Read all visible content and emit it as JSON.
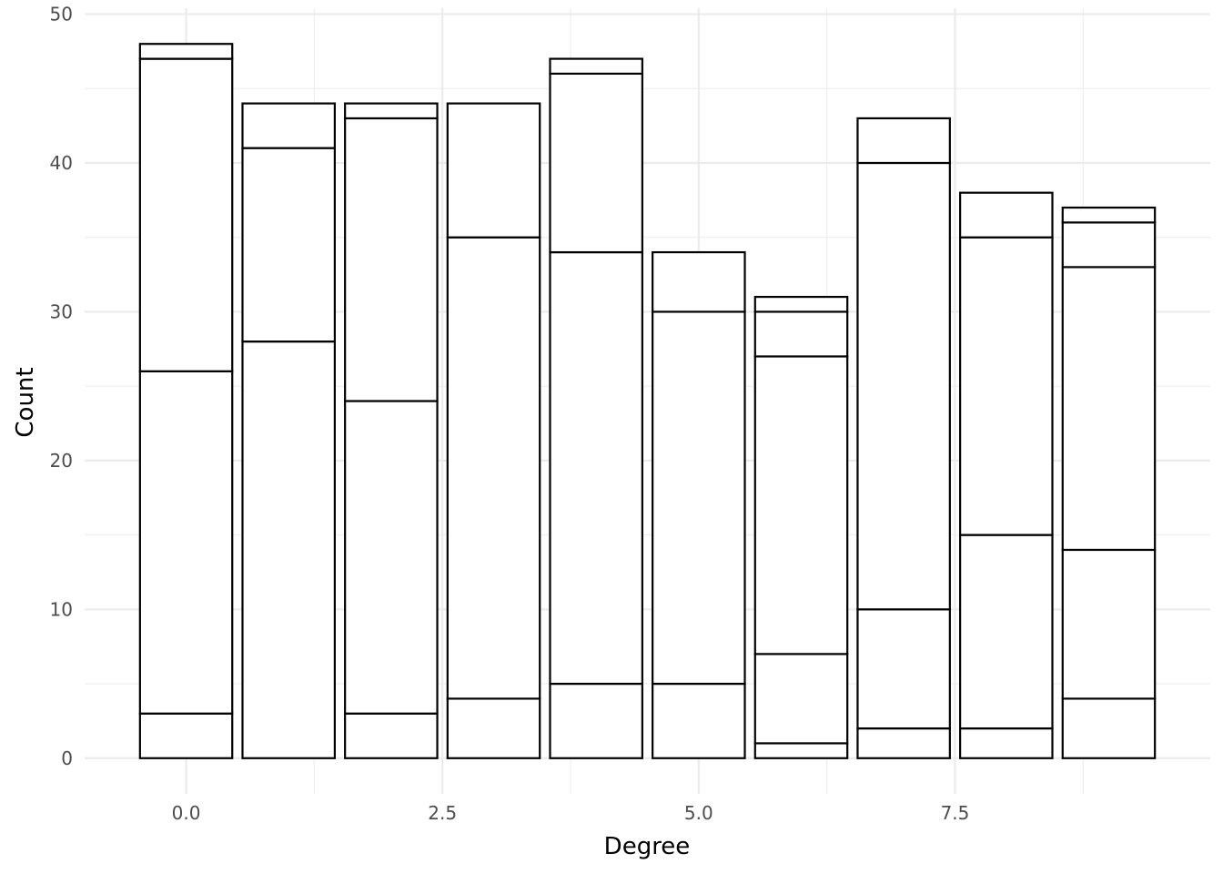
{
  "chart_data": {
    "type": "bar",
    "stacked": true,
    "title": "",
    "xlabel": "Degree",
    "ylabel": "Count",
    "xlim": [
      -0.99,
      9.99
    ],
    "ylim": [
      -2.4,
      50.4
    ],
    "x_ticks": [
      "0.0",
      "2.5",
      "5.0",
      "7.5"
    ],
    "x_tick_values": [
      0,
      2.5,
      5,
      7.5
    ],
    "y_ticks": [
      "0",
      "10",
      "20",
      "30",
      "40",
      "50"
    ],
    "y_tick_values": [
      0,
      10,
      20,
      30,
      40,
      50
    ],
    "grid": true,
    "legend": "none",
    "bar_fill": "#ffffff",
    "bar_outline": "#000000",
    "grid_color": "#ebebeb",
    "x": [
      0,
      1,
      2,
      3,
      4,
      5,
      6,
      7,
      8,
      9
    ],
    "segment_boundaries": [
      [
        3,
        26,
        47,
        48
      ],
      [
        28,
        41,
        44
      ],
      [
        3,
        24,
        43,
        44
      ],
      [
        4,
        35,
        44
      ],
      [
        5,
        34,
        46,
        47
      ],
      [
        5,
        30,
        34
      ],
      [
        1,
        7,
        27,
        30,
        31
      ],
      [
        2,
        10,
        40,
        43
      ],
      [
        2,
        15,
        35,
        38
      ],
      [
        4,
        14,
        33,
        36,
        37
      ]
    ],
    "totals": [
      48,
      44,
      44,
      44,
      47,
      34,
      31,
      43,
      38,
      37
    ]
  }
}
